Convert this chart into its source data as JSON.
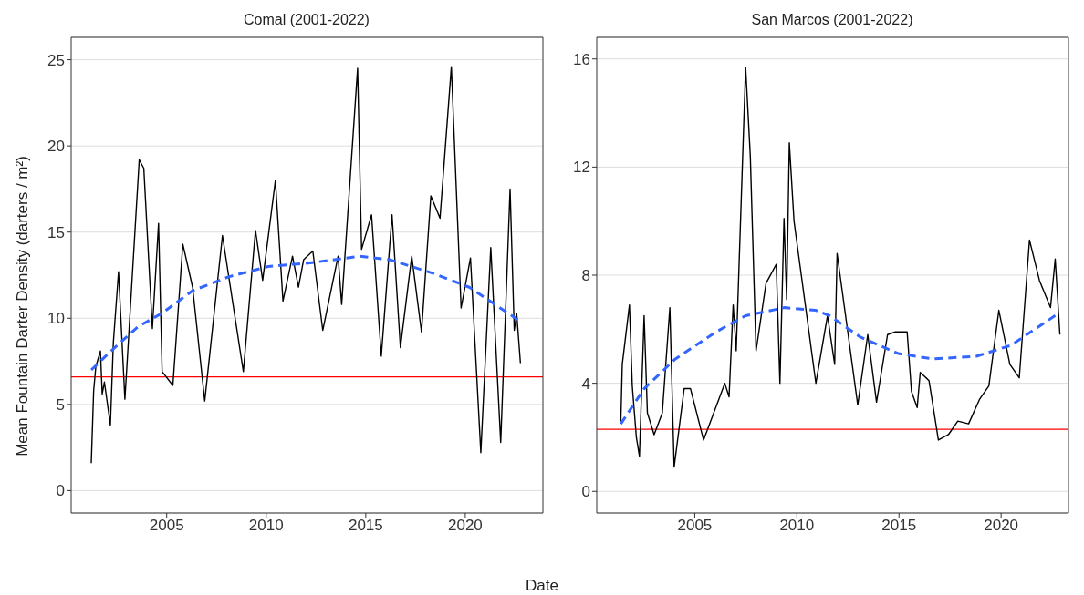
{
  "chart_data": [
    {
      "type": "line",
      "title": "Comal (2001-2022)",
      "xlabel": "Date",
      "ylabel": "Mean Fountain Darter Density (darters / m²)",
      "xlim": [
        2000.2,
        2023.9
      ],
      "xticks": [
        2005,
        2010,
        2015,
        2020
      ],
      "ylim": [
        -1.3,
        26.3
      ],
      "yticks": [
        0,
        5,
        10,
        15,
        20,
        25
      ],
      "grid": "y",
      "series": [
        {
          "color": "#000000",
          "line_style": "solid",
          "x": [
            2001.21,
            2001.33,
            2001.44,
            2001.67,
            2001.76,
            2001.87,
            2002.17,
            2002.32,
            2002.58,
            2002.9,
            2003.62,
            2003.85,
            2004.28,
            2004.59,
            2004.77,
            2005.31,
            2005.81,
            2006.3,
            2006.91,
            2007.8,
            2008.85,
            2009.46,
            2009.82,
            2010.46,
            2010.84,
            2011.32,
            2011.62,
            2011.88,
            2012.34,
            2012.84,
            2013.61,
            2013.79,
            2014.59,
            2014.79,
            2015.29,
            2015.78,
            2016.32,
            2016.74,
            2017.31,
            2017.8,
            2018.27,
            2018.73,
            2019.3,
            2019.79,
            2020.26,
            2020.78,
            2021.28,
            2021.78,
            2022.25,
            2022.46,
            2022.58,
            2022.77
          ],
          "values": [
            1.6,
            5.8,
            7.2,
            8.1,
            5.6,
            6.3,
            3.8,
            8.6,
            12.7,
            5.3,
            19.2,
            18.7,
            9.4,
            15.5,
            6.9,
            6.1,
            14.3,
            11.8,
            5.2,
            14.8,
            6.9,
            15.1,
            12.2,
            18,
            11,
            13.6,
            11.8,
            13.4,
            13.9,
            9.3,
            13.6,
            10.8,
            24.5,
            14,
            16,
            7.8,
            16,
            8.3,
            13.6,
            9.2,
            17.1,
            15.8,
            24.6,
            10.6,
            13.5,
            2.2,
            14.1,
            2.8,
            17.5,
            9.3,
            10.3,
            7.4
          ]
        },
        {
          "color": "#3366ff",
          "line_style": "dashed",
          "x": [
            2001.21,
            2002.3,
            2003.55,
            2004.77,
            2006.3,
            2008.1,
            2010.1,
            2012.1,
            2014.7,
            2016.2,
            2018.4,
            2020.2,
            2022.66
          ],
          "values": [
            7,
            8.2,
            9.5,
            10.3,
            11.6,
            12.4,
            13,
            13.2,
            13.6,
            13.4,
            12.6,
            11.8,
            9.9
          ]
        }
      ],
      "ref_lines": [
        {
          "axis": "y",
          "value": 6.6,
          "color": "#ff0000"
        }
      ]
    },
    {
      "type": "line",
      "title": "San Marcos (2001-2022)",
      "xlim": [
        2000.2,
        2023.3
      ],
      "xticks": [
        2005,
        2010,
        2015,
        2020
      ],
      "ylim": [
        -0.8,
        16.8
      ],
      "yticks": [
        0,
        4,
        8,
        12,
        16
      ],
      "grid": "y",
      "series": [
        {
          "color": "#000000",
          "line_style": "solid",
          "x": [
            2001.38,
            2001.45,
            2001.8,
            2001.94,
            2002.14,
            2002.29,
            2002.52,
            2002.68,
            2003.01,
            2003.41,
            2003.78,
            2003.99,
            2004.48,
            2004.79,
            2005.43,
            2006.47,
            2006.68,
            2006.88,
            2007.03,
            2007.49,
            2007.72,
            2008.0,
            2008.49,
            2008.99,
            2009.17,
            2009.37,
            2009.5,
            2009.63,
            2009.86,
            2010.93,
            2011.5,
            2011.85,
            2011.97,
            2012.98,
            2013.47,
            2013.9,
            2014.44,
            2014.82,
            2015.4,
            2015.61,
            2015.89,
            2016.04,
            2016.47,
            2016.93,
            2017.42,
            2017.88,
            2018.41,
            2018.94,
            2019.4,
            2019.89,
            2020.43,
            2020.89,
            2021.39,
            2021.88,
            2022.42,
            2022.65,
            2022.88
          ],
          "values": [
            2.6,
            4.7,
            6.9,
            3.9,
            2,
            1.3,
            6.5,
            2.9,
            2.1,
            2.9,
            6.8,
            0.9,
            3.8,
            3.8,
            1.9,
            4,
            3.5,
            6.9,
            5.2,
            15.7,
            12.4,
            5.2,
            7.7,
            8.4,
            4,
            10.1,
            7.1,
            12.9,
            10,
            4,
            6.5,
            4.7,
            8.8,
            3.2,
            5.8,
            3.3,
            5.8,
            5.9,
            5.9,
            3.7,
            3.1,
            4.4,
            4.1,
            1.9,
            2.1,
            2.6,
            2.5,
            3.4,
            3.9,
            6.7,
            4.7,
            4.2,
            9.3,
            7.8,
            6.8,
            8.6,
            5.8
          ]
        },
        {
          "color": "#3366ff",
          "line_style": "dashed",
          "x": [
            2001.38,
            2002.52,
            2004.05,
            2006.04,
            2007.49,
            2009.4,
            2010.93,
            2011.6,
            2013.13,
            2014.97,
            2016.65,
            2018.79,
            2020.47,
            2022.84
          ],
          "values": [
            2.5,
            3.8,
            4.9,
            5.9,
            6.5,
            6.8,
            6.7,
            6.5,
            5.7,
            5.1,
            4.9,
            5,
            5.4,
            6.6
          ]
        }
      ],
      "ref_lines": [
        {
          "axis": "y",
          "value": 2.3,
          "color": "#ff0000"
        }
      ]
    }
  ]
}
